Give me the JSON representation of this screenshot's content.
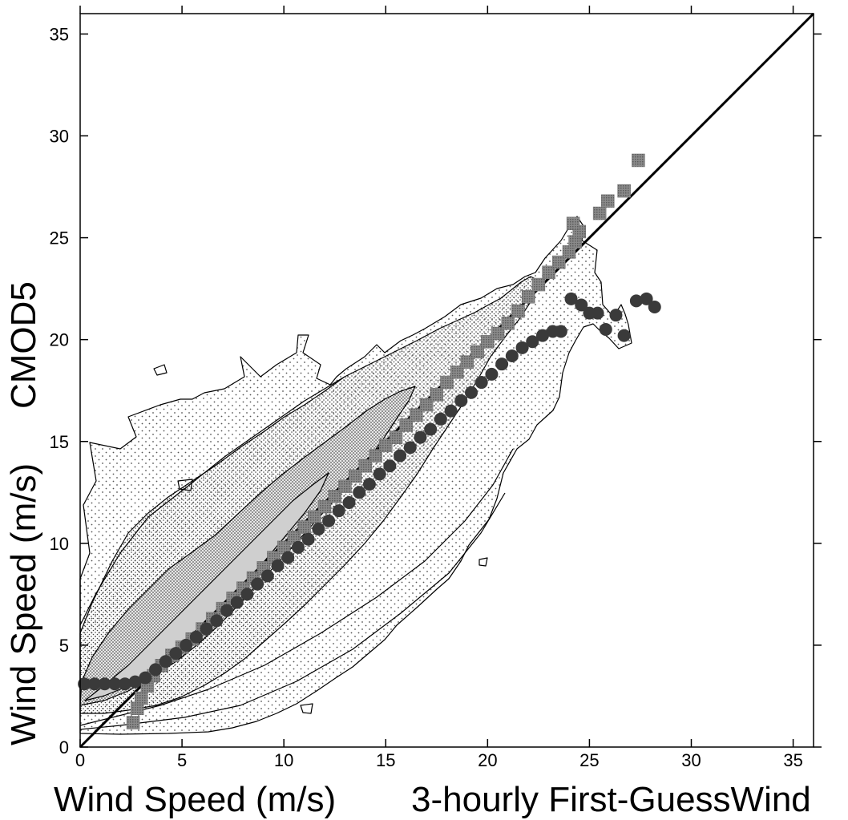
{
  "chart_data": {
    "type": "scatter",
    "title": "",
    "xlabel": "Wind Speed (m/s)",
    "xlabel_suffix": "3-hourly First-GuessWind",
    "ylabel": "Wind Speed (m/s)",
    "ylabel_suffix": "CMOD5",
    "xlim": [
      0,
      36
    ],
    "ylim": [
      0,
      36
    ],
    "xticks": [
      0,
      5,
      10,
      15,
      20,
      25,
      30,
      35
    ],
    "yticks": [
      0,
      5,
      10,
      15,
      20,
      25,
      30,
      35
    ],
    "grid": false,
    "diagonal": [
      [
        0,
        0
      ],
      [
        36,
        36
      ]
    ],
    "series": [
      {
        "marker": "square",
        "color": "#6e6e6e",
        "points": [
          [
            2.6,
            1.2
          ],
          [
            2.8,
            1.9
          ],
          [
            3.0,
            2.4
          ],
          [
            3.3,
            3.0
          ],
          [
            3.6,
            3.5
          ],
          [
            4.0,
            4.0
          ],
          [
            4.5,
            4.5
          ],
          [
            5.0,
            4.9
          ],
          [
            5.5,
            5.3
          ],
          [
            6.0,
            5.8
          ],
          [
            6.5,
            6.3
          ],
          [
            7.0,
            6.8
          ],
          [
            7.5,
            7.3
          ],
          [
            8.0,
            7.8
          ],
          [
            8.5,
            8.3
          ],
          [
            9.0,
            8.8
          ],
          [
            9.5,
            9.3
          ],
          [
            10.0,
            9.8
          ],
          [
            10.5,
            10.3
          ],
          [
            11.0,
            10.8
          ],
          [
            11.5,
            11.3
          ],
          [
            12.0,
            11.8
          ],
          [
            12.5,
            12.3
          ],
          [
            13.0,
            12.8
          ],
          [
            13.5,
            13.3
          ],
          [
            14.0,
            13.8
          ],
          [
            14.5,
            14.3
          ],
          [
            15.0,
            14.8
          ],
          [
            15.5,
            15.2
          ],
          [
            16.0,
            15.8
          ],
          [
            16.5,
            16.3
          ],
          [
            17.0,
            16.8
          ],
          [
            17.5,
            17.3
          ],
          [
            18.0,
            17.9
          ],
          [
            18.5,
            18.4
          ],
          [
            19.0,
            18.9
          ],
          [
            19.5,
            19.4
          ],
          [
            20.0,
            19.9
          ],
          [
            20.5,
            20.3
          ],
          [
            21.0,
            20.8
          ],
          [
            21.5,
            21.4
          ],
          [
            22.0,
            22.1
          ],
          [
            22.5,
            22.7
          ],
          [
            23.0,
            23.3
          ],
          [
            23.5,
            23.8
          ],
          [
            24.0,
            24.3
          ],
          [
            24.3,
            24.8
          ],
          [
            24.5,
            25.3
          ],
          [
            24.2,
            25.7
          ],
          [
            25.5,
            26.2
          ],
          [
            25.9,
            26.8
          ],
          [
            26.7,
            27.3
          ],
          [
            27.4,
            28.8
          ]
        ]
      },
      {
        "marker": "circle",
        "color": "#3a3a3a",
        "points": [
          [
            0.2,
            3.1
          ],
          [
            0.7,
            3.1
          ],
          [
            1.2,
            3.1
          ],
          [
            1.7,
            3.1
          ],
          [
            2.2,
            3.1
          ],
          [
            2.7,
            3.2
          ],
          [
            3.2,
            3.4
          ],
          [
            3.7,
            3.8
          ],
          [
            4.2,
            4.2
          ],
          [
            4.7,
            4.6
          ],
          [
            5.2,
            5.0
          ],
          [
            5.7,
            5.4
          ],
          [
            6.2,
            5.8
          ],
          [
            6.7,
            6.2
          ],
          [
            7.2,
            6.7
          ],
          [
            7.7,
            7.1
          ],
          [
            8.2,
            7.5
          ],
          [
            8.7,
            8.0
          ],
          [
            9.2,
            8.4
          ],
          [
            9.7,
            8.9
          ],
          [
            10.2,
            9.3
          ],
          [
            10.7,
            9.8
          ],
          [
            11.2,
            10.2
          ],
          [
            11.7,
            10.7
          ],
          [
            12.2,
            11.1
          ],
          [
            12.7,
            11.6
          ],
          [
            13.2,
            12.0
          ],
          [
            13.7,
            12.5
          ],
          [
            14.2,
            12.9
          ],
          [
            14.7,
            13.4
          ],
          [
            15.2,
            13.8
          ],
          [
            15.7,
            14.3
          ],
          [
            16.2,
            14.7
          ],
          [
            16.7,
            15.2
          ],
          [
            17.2,
            15.6
          ],
          [
            17.7,
            16.1
          ],
          [
            18.2,
            16.5
          ],
          [
            18.7,
            17.0
          ],
          [
            19.2,
            17.4
          ],
          [
            19.7,
            17.9
          ],
          [
            20.2,
            18.3
          ],
          [
            20.7,
            18.8
          ],
          [
            21.2,
            19.2
          ],
          [
            21.7,
            19.6
          ],
          [
            22.2,
            19.9
          ],
          [
            22.7,
            20.2
          ],
          [
            23.2,
            20.4
          ],
          [
            23.6,
            20.4
          ],
          [
            24.1,
            22.0
          ],
          [
            24.6,
            21.7
          ],
          [
            25.0,
            21.3
          ],
          [
            25.4,
            21.3
          ],
          [
            25.8,
            20.5
          ],
          [
            26.3,
            21.2
          ],
          [
            26.7,
            20.2
          ],
          [
            27.3,
            21.9
          ],
          [
            27.8,
            22.0
          ],
          [
            28.2,
            21.6
          ]
        ]
      }
    ]
  }
}
